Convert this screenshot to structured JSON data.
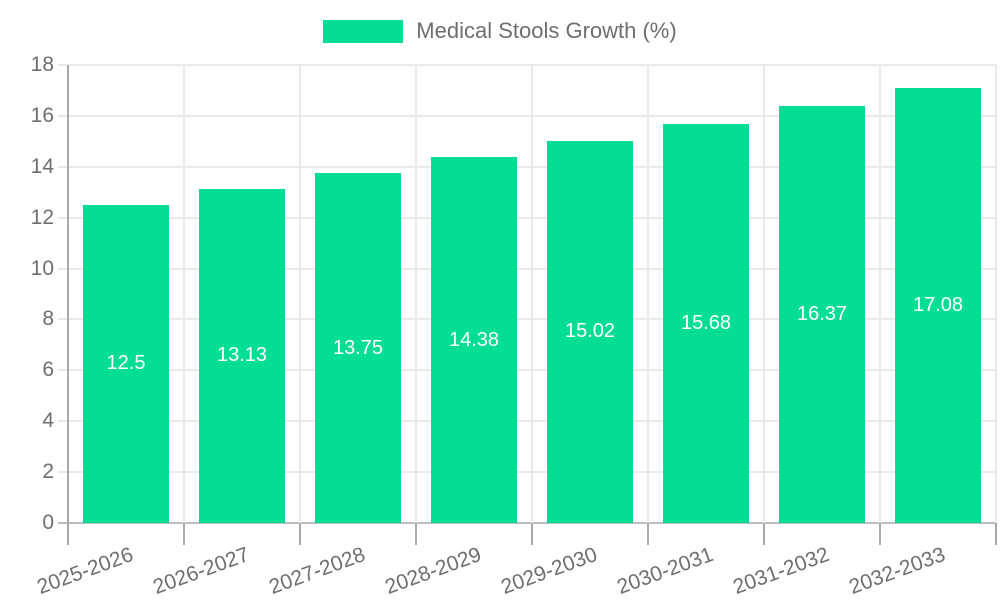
{
  "legend": {
    "label": "Medical Stools Growth (%)"
  },
  "chart_data": {
    "type": "bar",
    "title": "Medical Stools Growth (%)",
    "categories": [
      "2025-2026",
      "2026-2027",
      "2027-2028",
      "2028-2029",
      "2029-2030",
      "2030-2031",
      "2031-2032",
      "2032-2033"
    ],
    "values": [
      12.5,
      13.13,
      13.75,
      14.38,
      15.02,
      15.68,
      16.37,
      17.08
    ],
    "value_labels": [
      "12.5",
      "13.13",
      "13.75",
      "14.38",
      "15.02",
      "15.68",
      "16.37",
      "17.08"
    ],
    "xlabel": "",
    "ylabel": "",
    "ylim": [
      0,
      18
    ],
    "yticks": [
      0,
      2,
      4,
      6,
      8,
      10,
      12,
      14,
      16,
      18
    ],
    "grid": true,
    "legend_position": "top",
    "bar_color": "#04de94",
    "value_label_color": "#ffffff"
  },
  "colors": {
    "background": "#ffffff",
    "bar": "#04de94",
    "axis_text": "#6e6e6e",
    "grid_line": "#e9e9e9",
    "axis_line": "#a9a9a9",
    "zero_line": "#bcbcbc",
    "bar_label": "#ffffff"
  }
}
